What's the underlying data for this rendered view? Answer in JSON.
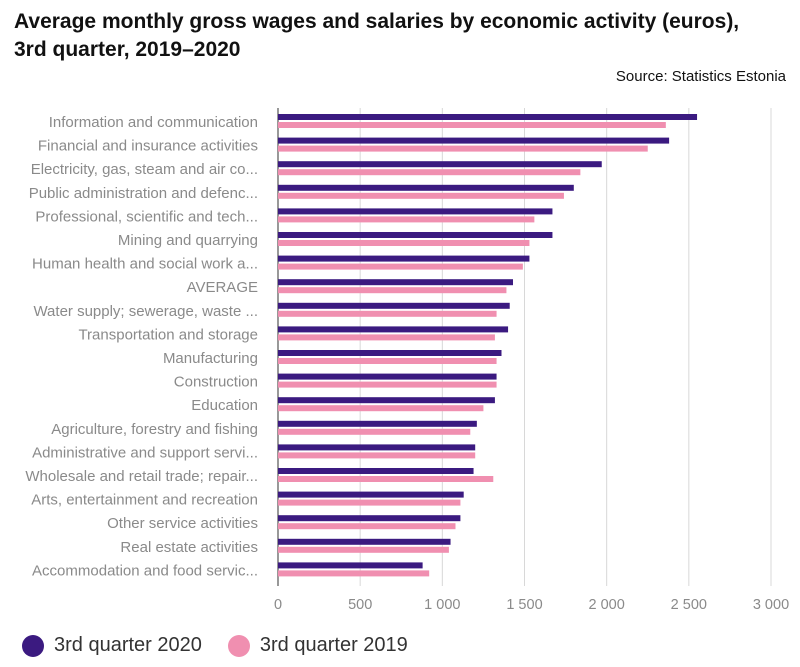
{
  "title": "Average monthly gross wages and salaries by economic activity (euros), 3rd quarter, 2019–2020",
  "source": "Source: Statistics Estonia",
  "colors": {
    "series2020": "#3b1a80",
    "series2019": "#f08fb0",
    "grid": "#d8d8d8",
    "axis": "#555555"
  },
  "chart_data": {
    "type": "bar",
    "orientation": "horizontal",
    "categories": [
      "Information and communication",
      "Financial and insurance activities",
      "Electricity, gas, steam and air co...",
      "Public administration and defenc...",
      "Professional, scientific and tech...",
      "Mining and quarrying",
      "Human health and social work a...",
      "AVERAGE",
      "Water supply; sewerage, waste ...",
      "Transportation and storage",
      "Manufacturing",
      "Construction",
      "Education",
      "Agriculture, forestry and fishing",
      "Administrative and support servi...",
      "Wholesale and retail trade; repair...",
      "Arts, entertainment and recreation",
      "Other service activities",
      "Real estate activities",
      "Accommodation and food servic..."
    ],
    "series": [
      {
        "name": "3rd quarter 2020",
        "values": [
          2550,
          2380,
          1970,
          1800,
          1670,
          1670,
          1530,
          1430,
          1410,
          1400,
          1360,
          1330,
          1320,
          1210,
          1200,
          1190,
          1130,
          1110,
          1050,
          880
        ]
      },
      {
        "name": "3rd quarter 2019",
        "values": [
          2360,
          2250,
          1840,
          1740,
          1560,
          1530,
          1490,
          1390,
          1330,
          1320,
          1330,
          1330,
          1250,
          1170,
          1200,
          1310,
          1110,
          1080,
          1040,
          920
        ]
      }
    ],
    "xlim": [
      0,
      3000
    ],
    "xticks": [
      0,
      500,
      1000,
      1500,
      2000,
      2500,
      3000
    ],
    "xtick_labels": [
      "0",
      "500",
      "1 000",
      "1 500",
      "2 000",
      "2 500",
      "3 000"
    ],
    "grid": true,
    "legend_position": "bottom-left"
  }
}
